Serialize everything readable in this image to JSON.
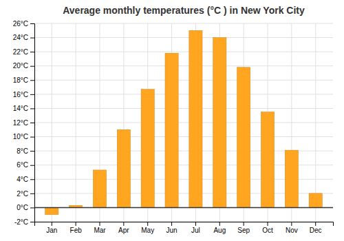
{
  "chart_data": {
    "type": "bar",
    "title": "Average monthly temperatures (°C ) in New York City",
    "categories": [
      "Jan",
      "Feb",
      "Mar",
      "Apr",
      "May",
      "Jun",
      "Jul",
      "Aug",
      "Sep",
      "Oct",
      "Nov",
      "Dec"
    ],
    "values": [
      -1.0,
      0.3,
      5.3,
      11.0,
      16.7,
      21.8,
      25.0,
      24.0,
      19.8,
      13.5,
      8.1,
      2.0
    ],
    "color": "#FFA520",
    "ylim": [
      -2,
      26
    ],
    "yticks": [
      {
        "value": -2,
        "label": "-2°C"
      },
      {
        "value": 0,
        "label": "0°C"
      },
      {
        "value": 2,
        "label": "2°C"
      },
      {
        "value": 4,
        "label": "4°C"
      },
      {
        "value": 6,
        "label": "6°C"
      },
      {
        "value": 8,
        "label": "8°C"
      },
      {
        "value": 10,
        "label": "10°C"
      },
      {
        "value": 12,
        "label": "12°C"
      },
      {
        "value": 14,
        "label": "14°C"
      },
      {
        "value": 16,
        "label": "16°C"
      },
      {
        "value": 18,
        "label": "18°C"
      },
      {
        "value": 20,
        "label": "20°C"
      },
      {
        "value": 22,
        "label": "22°C"
      },
      {
        "value": 24,
        "label": "24°C"
      },
      {
        "value": 26,
        "label": "26°C"
      }
    ],
    "grid": true
  }
}
